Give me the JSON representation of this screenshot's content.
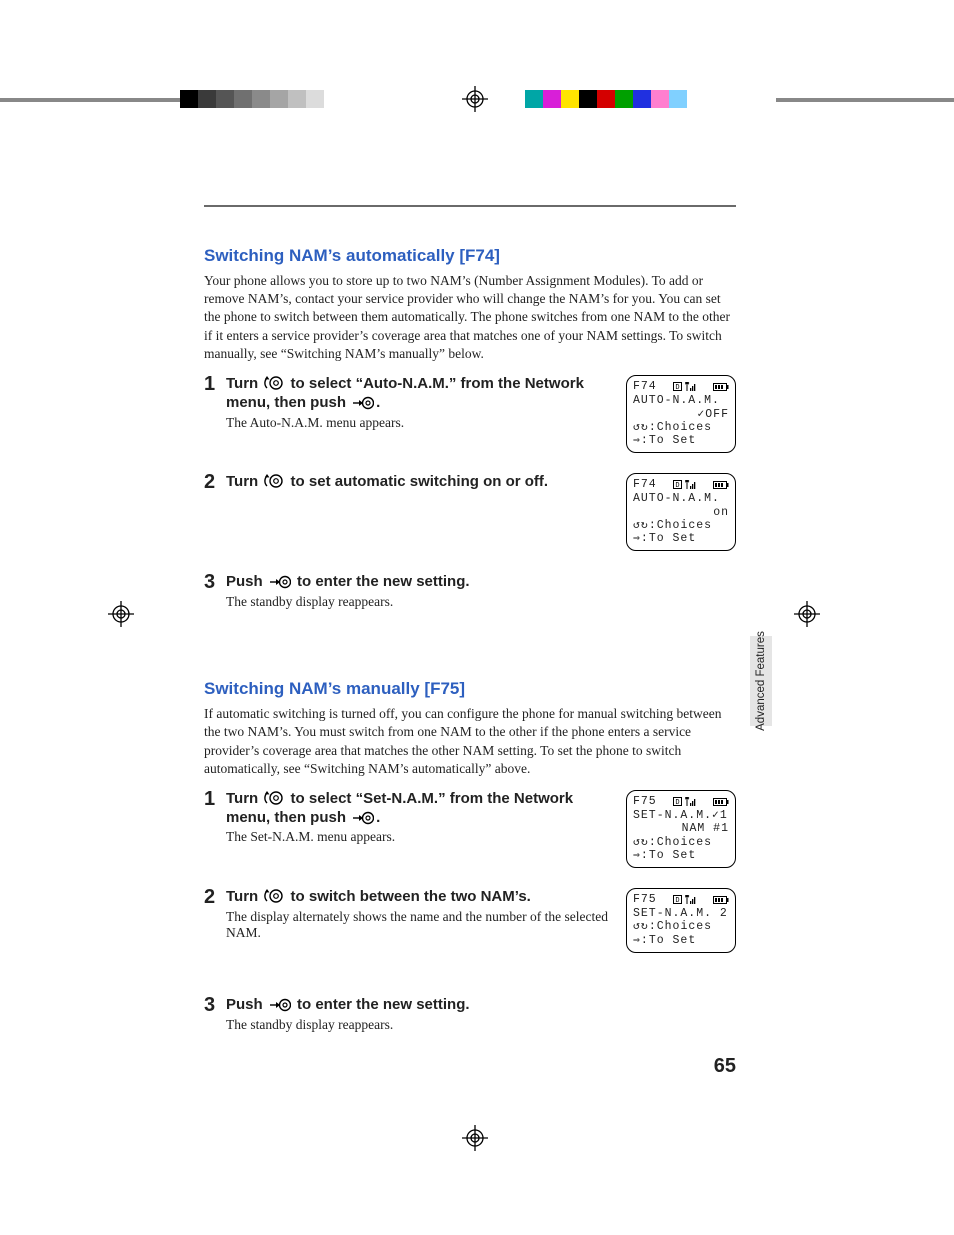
{
  "colors": {
    "heading": "#2d5fbf",
    "rule": "#6a6a6a",
    "sidetab_bg": "#e5e5e5",
    "text": "#222222"
  },
  "print_marks": {
    "left_swatches": [
      "#000000",
      "#3a3a3a",
      "#555555",
      "#707070",
      "#8a8a8a",
      "#a5a5a5",
      "#c0c0c0",
      "#dcdcdc",
      "#ffffff"
    ],
    "right_swatches": [
      "#00a6a6",
      "#d81fd8",
      "#ffe400",
      "#000000",
      "#d40000",
      "#00a000",
      "#2030e0",
      "#ff7fcf",
      "#80d0ff"
    ]
  },
  "page_number": "65",
  "sidetab": "Advanced Features",
  "section1": {
    "heading": "Switching NAM’s automatically [F74]",
    "lead": "Your phone allows you to store up to two NAM’s (Number Assignment Modules). To add or remove NAM’s, contact your service provider who will change the NAM’s for you. You can set the phone to switch between them automatically. The phone switches from one NAM to the other if it enters a service provider’s coverage area that matches one of your NAM settings. To switch manually, see “Switching NAM’s manually” below.",
    "steps": [
      {
        "n": "1",
        "title_a": "Turn ",
        "title_b": " to select “Auto-N.A.M.” from the Network menu, then push ",
        "title_c": ".",
        "desc": "The Auto-N.A.M. menu appears.",
        "lcd": {
          "fcode": "F74",
          "l1": "AUTO-N.A.M.",
          "l2": "✓OFF",
          "l3": "↺↻:Choices",
          "l4": "⇒:To Set"
        }
      },
      {
        "n": "2",
        "title_a": "Turn ",
        "title_b": " to set automatic switching on or off.",
        "title_c": "",
        "desc": "",
        "lcd": {
          "fcode": "F74",
          "l1": "AUTO-N.A.M.",
          "l2": "on",
          "l3": "↺↻:Choices",
          "l4": "⇒:To Set"
        }
      },
      {
        "n": "3",
        "title_a": "Push ",
        "title_b": " to enter the new setting.",
        "title_c": "",
        "desc": "The standby display reappears.",
        "lcd": null
      }
    ]
  },
  "section2": {
    "heading": "Switching NAM’s manually [F75]",
    "lead": "If automatic switching is turned off, you can configure the phone for manual switching between the two NAM’s. You must switch from one NAM to the other if the phone enters a service provider’s coverage area that matches the other NAM setting. To set the phone to switch automatically, see “Switching NAM’s automatically” above.",
    "steps": [
      {
        "n": "1",
        "title_a": "Turn ",
        "title_b": " to select “Set-N.A.M.” from the Network menu, then push ",
        "title_c": ".",
        "desc": "The Set-N.A.M. menu appears.",
        "lcd": {
          "fcode": "F75",
          "l1": "SET-N.A.M.✓1",
          "l2": "NAM #1",
          "l3": "↺↻:Choices",
          "l4": "⇒:To Set"
        }
      },
      {
        "n": "2",
        "title_a": "Turn ",
        "title_b": " to switch between the two NAM’s.",
        "title_c": "",
        "desc": "The display alternately shows the name and the number of the selected NAM.",
        "lcd": {
          "fcode": "F75",
          "l1": "SET-N.A.M. 2",
          "l2": "<empty>",
          "l3": "↺↻:Choices",
          "l4": "⇒:To Set"
        }
      },
      {
        "n": "3",
        "title_a": "Push ",
        "title_b": " to enter the new setting.",
        "title_c": "",
        "desc": "The standby display reappears.",
        "lcd": null
      }
    ]
  }
}
